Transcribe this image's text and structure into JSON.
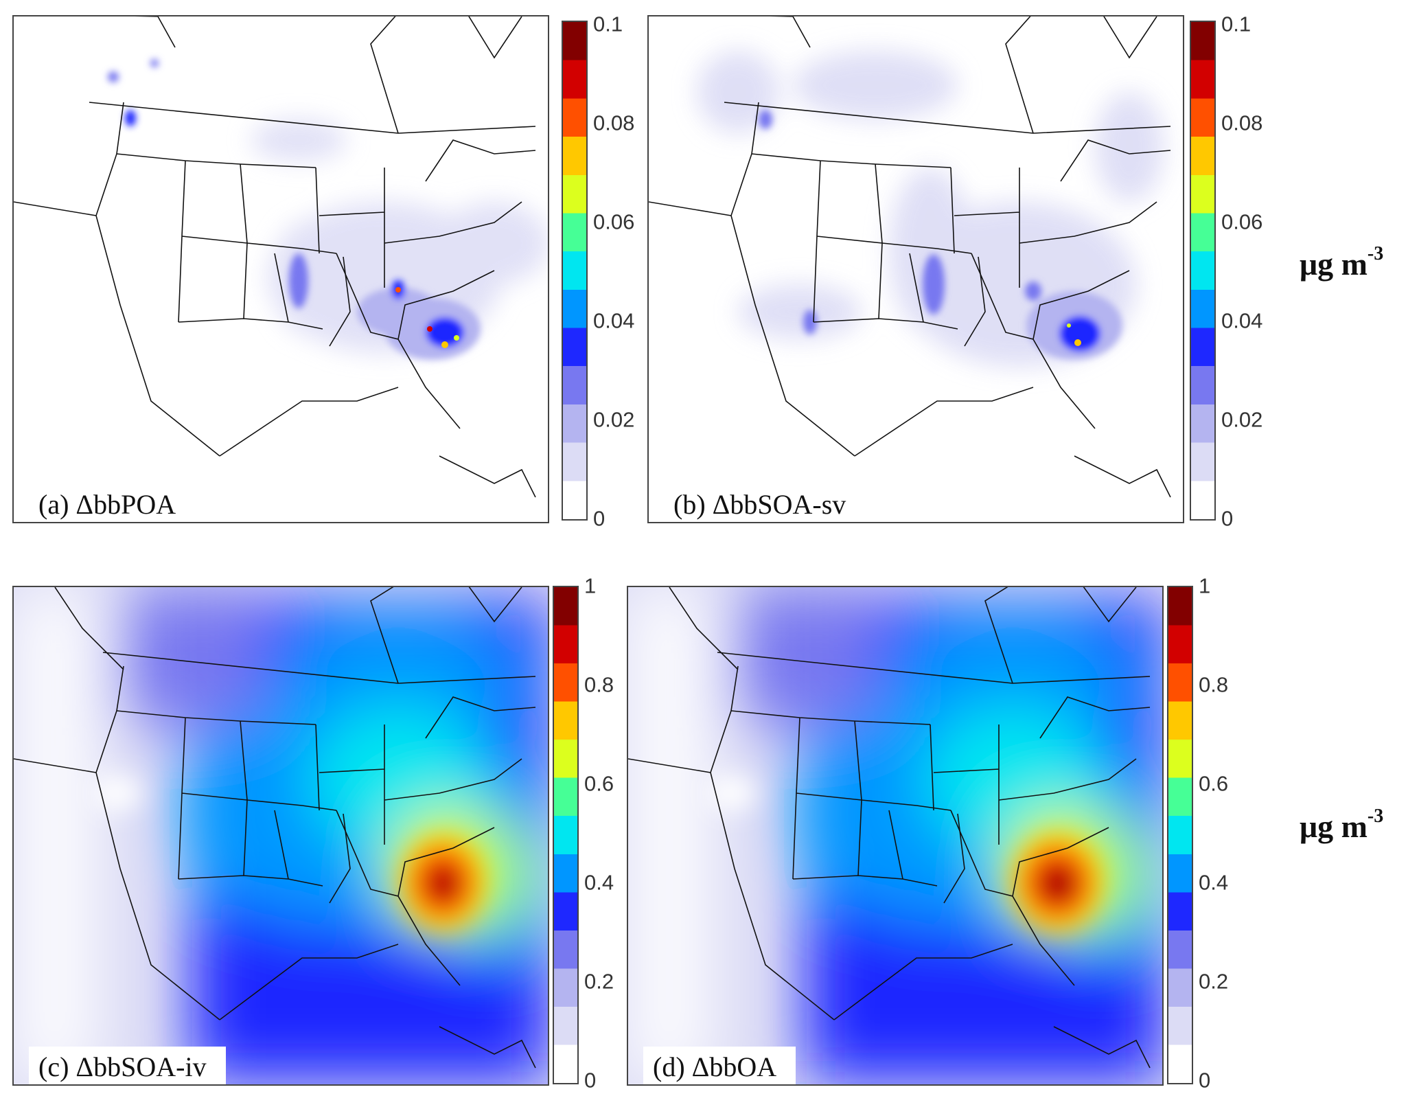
{
  "colormap": [
    "#ffffff",
    "#dcdcf5",
    "#b4b4f0",
    "#7878f0",
    "#1e28ff",
    "#0096ff",
    "#00e6f0",
    "#46ff96",
    "#dcff1e",
    "#ffc800",
    "#ff5000",
    "#d20000",
    "#820000"
  ],
  "land_fill": "#ffffff",
  "border_color": "#111111",
  "panels": [
    {
      "label": "(a) ΔbbPOA",
      "colorbar_ticks": [
        "0.1",
        "0.08",
        "0.06",
        "0.04",
        "0.02",
        "0"
      ]
    },
    {
      "label": "(b) ΔbbSOA-sv",
      "colorbar_ticks": [
        "0.1",
        "0.08",
        "0.06",
        "0.04",
        "0.02",
        "0"
      ]
    },
    {
      "label": "(c) ΔbbSOA-iv",
      "colorbar_ticks": [
        "1",
        "0.8",
        "0.6",
        "0.4",
        "0.2",
        "0"
      ]
    },
    {
      "label": "(d) ΔbbOA",
      "colorbar_ticks": [
        "1",
        "0.8",
        "0.6",
        "0.4",
        "0.2",
        "0"
      ]
    }
  ],
  "units": [
    {
      "base": "μg m",
      "exp": "-3"
    },
    {
      "base": "μg m",
      "exp": "-3"
    }
  ]
}
